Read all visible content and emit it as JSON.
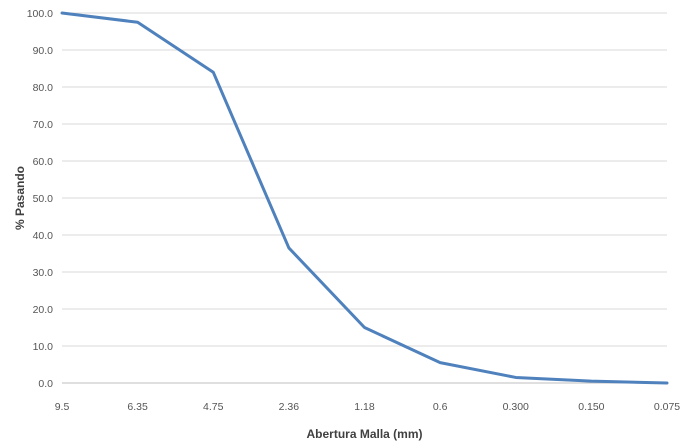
{
  "chart_data": {
    "type": "line",
    "title": "",
    "xlabel": "Abertura Malla (mm)",
    "ylabel": "% Pasando",
    "categories": [
      "9.5",
      "6.35",
      "4.75",
      "2.36",
      "1.18",
      "0.6",
      "0.300",
      "0.150",
      "0.075"
    ],
    "series": [
      {
        "values": [
          100.0,
          97.5,
          84.0,
          36.5,
          15.0,
          5.5,
          1.5,
          0.5,
          0.0
        ]
      }
    ],
    "ylim": [
      0,
      100
    ],
    "yticks": [
      "0.0",
      "10.0",
      "20.0",
      "30.0",
      "40.0",
      "50.0",
      "60.0",
      "70.0",
      "80.0",
      "90.0",
      "100.0"
    ],
    "grid": true,
    "legend": "none",
    "colors": {
      "line": "#4f81bd",
      "grid": "#d9d9d9"
    }
  }
}
